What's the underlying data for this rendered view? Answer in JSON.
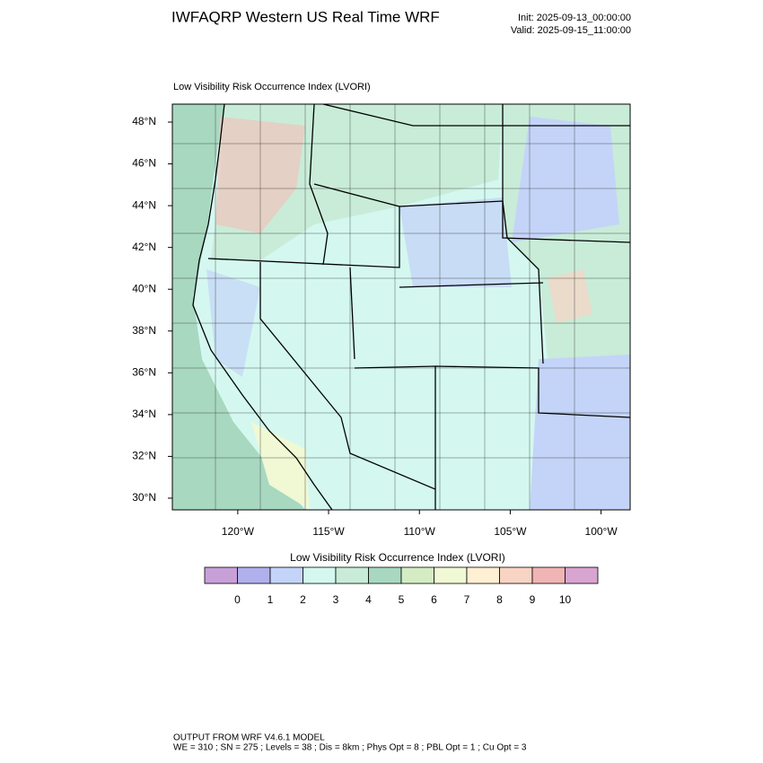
{
  "header": {
    "title": "IWFAQRP Western US Real Time WRF",
    "init": "Init: 2025-09-13_00:00:00",
    "valid": "Valid: 2025-09-15_11:00:00"
  },
  "map": {
    "subtitle": "Low Visibility Risk Occurrence Index   (LVORI)",
    "xlim": [
      -123.6,
      -98.4
    ],
    "ylim": [
      29.44,
      48.86
    ],
    "xticks": [
      {
        "value": -120,
        "label": "120°W"
      },
      {
        "value": -115,
        "label": "115°W"
      },
      {
        "value": -110,
        "label": "110°W"
      },
      {
        "value": -105,
        "label": "105°W"
      },
      {
        "value": -100,
        "label": "100°W"
      }
    ],
    "yticks": [
      {
        "value": 30,
        "label": "30°N"
      },
      {
        "value": 32,
        "label": "32°N"
      },
      {
        "value": 34,
        "label": "34°N"
      },
      {
        "value": 36,
        "label": "36°N"
      },
      {
        "value": 38,
        "label": "38°N"
      },
      {
        "value": 40,
        "label": "40°N"
      },
      {
        "value": 42,
        "label": "42°N"
      },
      {
        "value": 44,
        "label": "44°N"
      },
      {
        "value": 46,
        "label": "46°N"
      },
      {
        "value": 48,
        "label": "48°N"
      }
    ]
  },
  "colorbar": {
    "title": "Low Visibility Risk Occurrence Index  (LVORI)",
    "levels": [
      0,
      1,
      2,
      3,
      4,
      5,
      6,
      7,
      8,
      9,
      10
    ],
    "colors": [
      "#c8a0d8",
      "#b0b0ec",
      "#c4d4f8",
      "#d4f8f0",
      "#c8ecd8",
      "#a8d8c0",
      "#d4ecc4",
      "#f0f8d4",
      "#fff0d4",
      "#f8d4c4",
      "#f0b4b4",
      "#d8a4d0"
    ]
  },
  "footer": {
    "line1": "OUTPUT FROM WRF V4.6.1 MODEL",
    "line2": "WE = 310 ; SN = 275 ; Levels = 38 ; Dis = 8km ; Phys Opt = 8 ; PBL Opt = 1 ; Cu Opt = 3"
  }
}
